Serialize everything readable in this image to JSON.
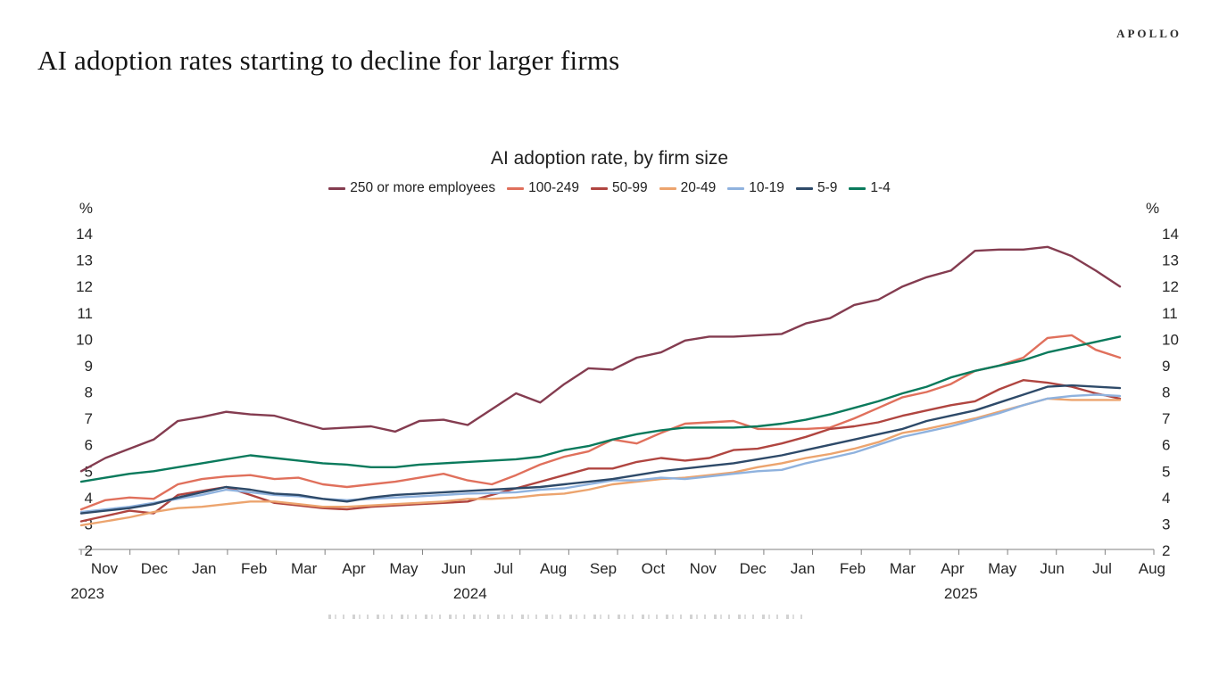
{
  "brand": "APOLLO",
  "page_title": "AI adoption rates starting to decline for larger firms",
  "chart_data": {
    "type": "line",
    "title": "AI adoption rate, by firm size",
    "unit_label": "%",
    "ylim": [
      2,
      14
    ],
    "y_ticks": [
      2,
      3,
      4,
      5,
      6,
      7,
      8,
      9,
      10,
      11,
      12,
      13,
      14
    ],
    "grid": false,
    "legend_position": "top",
    "x_tick_labels": [
      "Nov",
      "Dec",
      "Jan",
      "Feb",
      "Mar",
      "Apr",
      "May",
      "Jun",
      "Jul",
      "Aug",
      "Sep",
      "Oct",
      "Nov",
      "Dec",
      "Jan",
      "Feb",
      "Mar",
      "Apr",
      "May",
      "Jun",
      "Jul",
      "Aug"
    ],
    "year_labels": [
      {
        "label": "2023",
        "month_index": -0.34
      },
      {
        "label": "2024",
        "month_index": 7.33
      },
      {
        "label": "2025",
        "month_index": 17.17
      }
    ],
    "sampling": "2 points per month, Nov 2023 to late Jul 2025",
    "series": [
      {
        "name": "250 or more employees",
        "color": "#843C50",
        "values": [
          5.0,
          5.5,
          5.85,
          6.2,
          6.9,
          7.05,
          7.25,
          7.15,
          7.1,
          6.85,
          6.6,
          6.65,
          6.7,
          6.5,
          6.9,
          6.95,
          6.75,
          7.35,
          7.95,
          7.6,
          8.3,
          8.9,
          8.85,
          9.3,
          9.5,
          9.95,
          10.1,
          10.1,
          10.15,
          10.2,
          10.6,
          10.8,
          11.3,
          11.5,
          12.0,
          12.35,
          12.6,
          13.35,
          13.4,
          13.4,
          13.5,
          13.15,
          12.6,
          12.0
        ]
      },
      {
        "name": "100-249",
        "color": "#E0705C",
        "values": [
          3.55,
          3.9,
          4.0,
          3.95,
          4.5,
          4.7,
          4.8,
          4.85,
          4.7,
          4.75,
          4.5,
          4.4,
          4.5,
          4.6,
          4.75,
          4.9,
          4.65,
          4.5,
          4.85,
          5.25,
          5.55,
          5.75,
          6.2,
          6.05,
          6.45,
          6.8,
          6.85,
          6.9,
          6.6,
          6.6,
          6.6,
          6.65,
          7.0,
          7.4,
          7.8,
          8.0,
          8.3,
          8.8,
          9.0,
          9.3,
          10.05,
          10.15,
          9.6,
          9.3
        ]
      },
      {
        "name": "50-99",
        "color": "#B04540",
        "values": [
          3.1,
          3.3,
          3.5,
          3.4,
          4.1,
          4.25,
          4.4,
          4.1,
          3.8,
          3.7,
          3.6,
          3.55,
          3.65,
          3.7,
          3.75,
          3.8,
          3.85,
          4.1,
          4.35,
          4.6,
          4.85,
          5.1,
          5.1,
          5.35,
          5.5,
          5.4,
          5.5,
          5.8,
          5.85,
          6.05,
          6.3,
          6.6,
          6.7,
          6.85,
          7.1,
          7.3,
          7.5,
          7.65,
          8.1,
          8.45,
          8.35,
          8.2,
          7.95,
          7.75
        ]
      },
      {
        "name": "20-49",
        "color": "#ECA46E",
        "values": [
          2.95,
          3.1,
          3.25,
          3.45,
          3.6,
          3.65,
          3.75,
          3.85,
          3.85,
          3.75,
          3.65,
          3.65,
          3.7,
          3.75,
          3.8,
          3.85,
          3.95,
          3.95,
          4.0,
          4.1,
          4.15,
          4.3,
          4.5,
          4.6,
          4.7,
          4.75,
          4.85,
          4.95,
          5.15,
          5.3,
          5.5,
          5.65,
          5.85,
          6.1,
          6.45,
          6.6,
          6.8,
          7.0,
          7.25,
          7.5,
          7.75,
          7.7,
          7.7,
          7.7
        ]
      },
      {
        "name": "10-19",
        "color": "#8FB2DE",
        "values": [
          3.45,
          3.55,
          3.65,
          3.8,
          3.95,
          4.1,
          4.3,
          4.2,
          4.1,
          4.05,
          3.95,
          3.9,
          3.95,
          4.0,
          4.05,
          4.1,
          4.15,
          4.17,
          4.2,
          4.3,
          4.35,
          4.5,
          4.65,
          4.65,
          4.75,
          4.7,
          4.8,
          4.9,
          5.0,
          5.05,
          5.3,
          5.5,
          5.7,
          6.0,
          6.3,
          6.5,
          6.7,
          6.95,
          7.2,
          7.5,
          7.75,
          7.85,
          7.9,
          7.85
        ]
      },
      {
        "name": "5-9",
        "color": "#2E4A69",
        "values": [
          3.4,
          3.5,
          3.6,
          3.75,
          4.0,
          4.2,
          4.4,
          4.3,
          4.15,
          4.1,
          3.95,
          3.85,
          4.0,
          4.1,
          4.15,
          4.2,
          4.25,
          4.3,
          4.35,
          4.4,
          4.5,
          4.6,
          4.7,
          4.85,
          5.0,
          5.1,
          5.2,
          5.3,
          5.45,
          5.6,
          5.8,
          6.0,
          6.2,
          6.4,
          6.6,
          6.9,
          7.1,
          7.3,
          7.6,
          7.9,
          8.2,
          8.25,
          8.2,
          8.15
        ]
      },
      {
        "name": "1-4",
        "color": "#0A7A5C",
        "values": [
          4.6,
          4.75,
          4.9,
          5.0,
          5.15,
          5.3,
          5.45,
          5.6,
          5.5,
          5.4,
          5.3,
          5.25,
          5.15,
          5.15,
          5.25,
          5.3,
          5.35,
          5.4,
          5.45,
          5.55,
          5.8,
          5.95,
          6.2,
          6.4,
          6.55,
          6.65,
          6.65,
          6.65,
          6.7,
          6.8,
          6.95,
          7.15,
          7.4,
          7.65,
          7.95,
          8.2,
          8.55,
          8.8,
          9.0,
          9.2,
          9.5,
          9.7,
          9.9,
          10.1
        ]
      }
    ]
  }
}
